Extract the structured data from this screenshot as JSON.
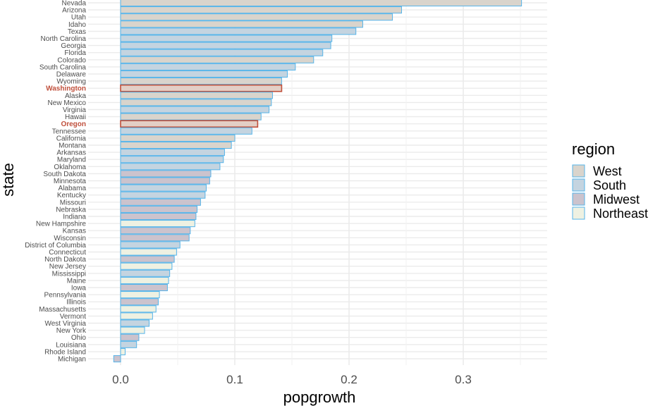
{
  "chart_data": {
    "type": "bar",
    "orientation": "horizontal",
    "xlabel": "popgrowth",
    "ylabel": "state",
    "xlim": [
      -0.025,
      0.37
    ],
    "x_ticks": [
      0.0,
      0.1,
      0.2,
      0.3
    ],
    "x_tick_labels": [
      "0.0",
      "0.1",
      "0.2",
      "0.3"
    ],
    "grid": true,
    "legend": {
      "title": "region",
      "placement": "right",
      "entries": [
        {
          "name": "West",
          "color": "#d9d4cc"
        },
        {
          "name": "South",
          "color": "#c4d4e0"
        },
        {
          "name": "Midwest",
          "color": "#cbc3cd"
        },
        {
          "name": "Northeast",
          "color": "#eef1e2"
        }
      ]
    },
    "colors": {
      "bar_outline": "#56b4e9",
      "highlight_outline": "#c0503c",
      "highlight_label": "#c0503c",
      "highlight_fill": "#e3cfc6"
    },
    "highlighted": [
      "Washington",
      "Oregon"
    ],
    "states": [
      {
        "state": "Nevada",
        "value": 0.351,
        "region": "West"
      },
      {
        "state": "Arizona",
        "value": 0.246,
        "region": "West"
      },
      {
        "state": "Utah",
        "value": 0.238,
        "region": "West"
      },
      {
        "state": "Idaho",
        "value": 0.212,
        "region": "West"
      },
      {
        "state": "Texas",
        "value": 0.206,
        "region": "South"
      },
      {
        "state": "North Carolina",
        "value": 0.185,
        "region": "South"
      },
      {
        "state": "Georgia",
        "value": 0.184,
        "region": "South"
      },
      {
        "state": "Florida",
        "value": 0.177,
        "region": "South"
      },
      {
        "state": "Colorado",
        "value": 0.169,
        "region": "West"
      },
      {
        "state": "South Carolina",
        "value": 0.153,
        "region": "South"
      },
      {
        "state": "Delaware",
        "value": 0.146,
        "region": "South"
      },
      {
        "state": "Wyoming",
        "value": 0.141,
        "region": "West"
      },
      {
        "state": "Washington",
        "value": 0.141,
        "region": "West"
      },
      {
        "state": "Alaska",
        "value": 0.133,
        "region": "West"
      },
      {
        "state": "New Mexico",
        "value": 0.132,
        "region": "West"
      },
      {
        "state": "Virginia",
        "value": 0.13,
        "region": "South"
      },
      {
        "state": "Hawaii",
        "value": 0.123,
        "region": "West"
      },
      {
        "state": "Oregon",
        "value": 0.12,
        "region": "West"
      },
      {
        "state": "Tennessee",
        "value": 0.115,
        "region": "South"
      },
      {
        "state": "California",
        "value": 0.1,
        "region": "West"
      },
      {
        "state": "Montana",
        "value": 0.097,
        "region": "West"
      },
      {
        "state": "Arkansas",
        "value": 0.091,
        "region": "South"
      },
      {
        "state": "Maryland",
        "value": 0.09,
        "region": "South"
      },
      {
        "state": "Oklahoma",
        "value": 0.087,
        "region": "South"
      },
      {
        "state": "South Dakota",
        "value": 0.079,
        "region": "Midwest"
      },
      {
        "state": "Minnesota",
        "value": 0.078,
        "region": "Midwest"
      },
      {
        "state": "Alabama",
        "value": 0.075,
        "region": "South"
      },
      {
        "state": "Kentucky",
        "value": 0.074,
        "region": "South"
      },
      {
        "state": "Missouri",
        "value": 0.07,
        "region": "Midwest"
      },
      {
        "state": "Nebraska",
        "value": 0.067,
        "region": "Midwest"
      },
      {
        "state": "Indiana",
        "value": 0.066,
        "region": "Midwest"
      },
      {
        "state": "New Hampshire",
        "value": 0.065,
        "region": "Northeast"
      },
      {
        "state": "Kansas",
        "value": 0.061,
        "region": "Midwest"
      },
      {
        "state": "Wisconsin",
        "value": 0.06,
        "region": "Midwest"
      },
      {
        "state": "District of Columbia",
        "value": 0.052,
        "region": "South"
      },
      {
        "state": "Connecticut",
        "value": 0.049,
        "region": "Northeast"
      },
      {
        "state": "North Dakota",
        "value": 0.047,
        "region": "Midwest"
      },
      {
        "state": "New Jersey",
        "value": 0.045,
        "region": "Northeast"
      },
      {
        "state": "Mississippi",
        "value": 0.043,
        "region": "South"
      },
      {
        "state": "Maine",
        "value": 0.042,
        "region": "Northeast"
      },
      {
        "state": "Iowa",
        "value": 0.041,
        "region": "Midwest"
      },
      {
        "state": "Pennsylvania",
        "value": 0.034,
        "region": "Northeast"
      },
      {
        "state": "Illinois",
        "value": 0.033,
        "region": "Midwest"
      },
      {
        "state": "Massachusetts",
        "value": 0.031,
        "region": "Northeast"
      },
      {
        "state": "Vermont",
        "value": 0.028,
        "region": "Northeast"
      },
      {
        "state": "West Virginia",
        "value": 0.025,
        "region": "South"
      },
      {
        "state": "New York",
        "value": 0.021,
        "region": "Northeast"
      },
      {
        "state": "Ohio",
        "value": 0.016,
        "region": "Midwest"
      },
      {
        "state": "Louisiana",
        "value": 0.014,
        "region": "South"
      },
      {
        "state": "Rhode Island",
        "value": 0.004,
        "region": "Northeast"
      },
      {
        "state": "Michigan",
        "value": -0.006,
        "region": "Midwest"
      }
    ]
  }
}
